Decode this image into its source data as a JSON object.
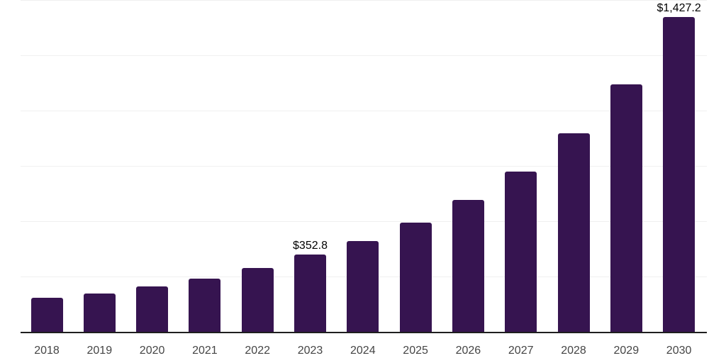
{
  "chart_data": {
    "type": "bar",
    "title": "",
    "xlabel": "",
    "ylabel": "",
    "categories": [
      "2018",
      "2019",
      "2020",
      "2021",
      "2022",
      "2023",
      "2024",
      "2025",
      "2026",
      "2027",
      "2028",
      "2029",
      "2030"
    ],
    "values": [
      155.5,
      175.9,
      206.8,
      243.1,
      293.2,
      352.8,
      413.5,
      498.3,
      598.9,
      728.1,
      900.7,
      1121.4,
      1427.2
    ],
    "data_labels": [
      null,
      null,
      null,
      null,
      null,
      "$352.8",
      null,
      null,
      null,
      null,
      null,
      null,
      "$1,427.2"
    ],
    "ylim": [
      0,
      1500
    ],
    "gridline_interval": 250,
    "grid": true,
    "legend": false,
    "y_axis_ticks_visible": false,
    "colors": {
      "bar": "#361450",
      "gridline": "#f0f0f0",
      "axis_line": "#1f1f1f",
      "value_label": "#000000",
      "tick_label": "#454545",
      "background": "#ffffff"
    }
  }
}
